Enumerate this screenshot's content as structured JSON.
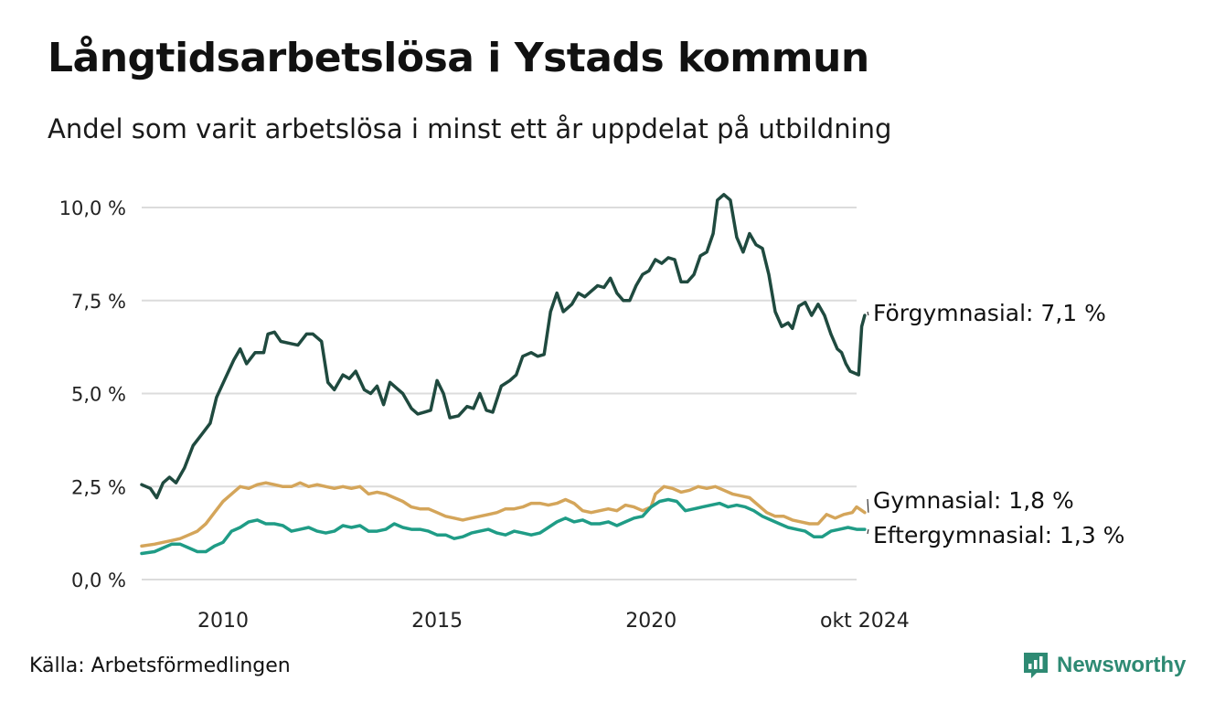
{
  "title": "Långtidsarbetslösa i Ystads kommun",
  "subtitle": "Andel som varit arbetslösa i minst ett år uppdelat på utbildning",
  "source": "Källa: Arbetsförmedlingen",
  "brand": "Newsworthy",
  "colors": {
    "forgymnasial": "#1f4a3f",
    "gymnasial": "#d4a55a",
    "eftergymnasial": "#1f9c86",
    "grid": "#dcdcdc",
    "brand": "#2e8a73"
  },
  "chart_data": {
    "type": "line",
    "title": "",
    "xlabel": "",
    "ylabel": "",
    "xlim": [
      2008.1,
      2024.8
    ],
    "ylim": [
      0,
      10
    ],
    "x_ticks": [
      2010,
      2015,
      2020
    ],
    "x_tick_labels": [
      "2010",
      "2015",
      "2020"
    ],
    "x_end_label": "okt 2024",
    "y_ticks": [
      0,
      2.5,
      5,
      7.5,
      10
    ],
    "y_tick_labels": [
      "0,0 %",
      "2,5 %",
      "5,0 %",
      "7,5 %",
      "10,0 %"
    ],
    "grid": true,
    "series": [
      {
        "name": "Förgymnasial",
        "end_label": "Förgymnasial: 7,1 %",
        "color_key": "forgymnasial",
        "points": [
          [
            2008.1,
            2.55
          ],
          [
            2008.3,
            2.45
          ],
          [
            2008.45,
            2.2
          ],
          [
            2008.6,
            2.6
          ],
          [
            2008.75,
            2.75
          ],
          [
            2008.9,
            2.6
          ],
          [
            2009.1,
            3.0
          ],
          [
            2009.3,
            3.6
          ],
          [
            2009.5,
            3.9
          ],
          [
            2009.7,
            4.2
          ],
          [
            2009.85,
            4.9
          ],
          [
            2010.05,
            5.4
          ],
          [
            2010.25,
            5.9
          ],
          [
            2010.4,
            6.2
          ],
          [
            2010.55,
            5.8
          ],
          [
            2010.75,
            6.1
          ],
          [
            2010.95,
            6.1
          ],
          [
            2011.05,
            6.6
          ],
          [
            2011.2,
            6.65
          ],
          [
            2011.35,
            6.4
          ],
          [
            2011.55,
            6.35
          ],
          [
            2011.75,
            6.3
          ],
          [
            2011.95,
            6.6
          ],
          [
            2012.1,
            6.6
          ],
          [
            2012.3,
            6.4
          ],
          [
            2012.45,
            5.3
          ],
          [
            2012.6,
            5.1
          ],
          [
            2012.8,
            5.5
          ],
          [
            2012.95,
            5.4
          ],
          [
            2013.1,
            5.6
          ],
          [
            2013.3,
            5.1
          ],
          [
            2013.45,
            5.0
          ],
          [
            2013.6,
            5.2
          ],
          [
            2013.75,
            4.7
          ],
          [
            2013.9,
            5.3
          ],
          [
            2014.05,
            5.15
          ],
          [
            2014.2,
            5.0
          ],
          [
            2014.4,
            4.6
          ],
          [
            2014.55,
            4.45
          ],
          [
            2014.7,
            4.5
          ],
          [
            2014.85,
            4.55
          ],
          [
            2015.0,
            5.35
          ],
          [
            2015.15,
            5.0
          ],
          [
            2015.3,
            4.35
          ],
          [
            2015.5,
            4.4
          ],
          [
            2015.7,
            4.65
          ],
          [
            2015.85,
            4.6
          ],
          [
            2016.0,
            5.0
          ],
          [
            2016.15,
            4.55
          ],
          [
            2016.3,
            4.5
          ],
          [
            2016.5,
            5.2
          ],
          [
            2016.7,
            5.35
          ],
          [
            2016.85,
            5.5
          ],
          [
            2017.0,
            6.0
          ],
          [
            2017.2,
            6.1
          ],
          [
            2017.35,
            6.0
          ],
          [
            2017.5,
            6.05
          ],
          [
            2017.65,
            7.2
          ],
          [
            2017.8,
            7.7
          ],
          [
            2017.95,
            7.2
          ],
          [
            2018.15,
            7.4
          ],
          [
            2018.3,
            7.7
          ],
          [
            2018.45,
            7.6
          ],
          [
            2018.6,
            7.75
          ],
          [
            2018.75,
            7.9
          ],
          [
            2018.9,
            7.85
          ],
          [
            2019.05,
            8.1
          ],
          [
            2019.2,
            7.7
          ],
          [
            2019.35,
            7.5
          ],
          [
            2019.5,
            7.5
          ],
          [
            2019.65,
            7.9
          ],
          [
            2019.8,
            8.2
          ],
          [
            2019.95,
            8.3
          ],
          [
            2020.1,
            8.6
          ],
          [
            2020.25,
            8.5
          ],
          [
            2020.4,
            8.65
          ],
          [
            2020.55,
            8.6
          ],
          [
            2020.7,
            8.0
          ],
          [
            2020.85,
            8.0
          ],
          [
            2021.0,
            8.2
          ],
          [
            2021.15,
            8.7
          ],
          [
            2021.3,
            8.8
          ],
          [
            2021.45,
            9.3
          ],
          [
            2021.55,
            10.2
          ],
          [
            2021.7,
            10.35
          ],
          [
            2021.85,
            10.2
          ],
          [
            2022.0,
            9.2
          ],
          [
            2022.15,
            8.8
          ],
          [
            2022.3,
            9.3
          ],
          [
            2022.45,
            9.0
          ],
          [
            2022.6,
            8.9
          ],
          [
            2022.75,
            8.2
          ],
          [
            2022.9,
            7.2
          ],
          [
            2023.05,
            6.8
          ],
          [
            2023.2,
            6.9
          ],
          [
            2023.3,
            6.75
          ],
          [
            2023.45,
            7.35
          ],
          [
            2023.6,
            7.45
          ],
          [
            2023.75,
            7.1
          ],
          [
            2023.9,
            7.4
          ],
          [
            2024.05,
            7.1
          ],
          [
            2024.2,
            6.6
          ],
          [
            2024.35,
            6.2
          ],
          [
            2024.45,
            6.1
          ],
          [
            2024.55,
            5.8
          ],
          [
            2024.65,
            5.6
          ],
          [
            2024.75,
            5.55
          ],
          [
            2024.85,
            5.5
          ],
          [
            2024.92,
            6.8
          ],
          [
            2024.99,
            7.1
          ]
        ]
      },
      {
        "name": "Gymnasial",
        "end_label": "Gymnasial: 1,8 %",
        "color_key": "gymnasial",
        "points": [
          [
            2008.1,
            0.9
          ],
          [
            2008.4,
            0.95
          ],
          [
            2008.6,
            1.0
          ],
          [
            2008.8,
            1.05
          ],
          [
            2009.0,
            1.1
          ],
          [
            2009.2,
            1.2
          ],
          [
            2009.4,
            1.3
          ],
          [
            2009.6,
            1.5
          ],
          [
            2009.8,
            1.8
          ],
          [
            2010.0,
            2.1
          ],
          [
            2010.2,
            2.3
          ],
          [
            2010.4,
            2.5
          ],
          [
            2010.6,
            2.45
          ],
          [
            2010.8,
            2.55
          ],
          [
            2011.0,
            2.6
          ],
          [
            2011.2,
            2.55
          ],
          [
            2011.4,
            2.5
          ],
          [
            2011.6,
            2.5
          ],
          [
            2011.8,
            2.6
          ],
          [
            2012.0,
            2.5
          ],
          [
            2012.2,
            2.55
          ],
          [
            2012.4,
            2.5
          ],
          [
            2012.6,
            2.45
          ],
          [
            2012.8,
            2.5
          ],
          [
            2013.0,
            2.45
          ],
          [
            2013.2,
            2.5
          ],
          [
            2013.4,
            2.3
          ],
          [
            2013.6,
            2.35
          ],
          [
            2013.8,
            2.3
          ],
          [
            2014.0,
            2.2
          ],
          [
            2014.2,
            2.1
          ],
          [
            2014.4,
            1.95
          ],
          [
            2014.6,
            1.9
          ],
          [
            2014.8,
            1.9
          ],
          [
            2015.0,
            1.8
          ],
          [
            2015.2,
            1.7
          ],
          [
            2015.4,
            1.65
          ],
          [
            2015.6,
            1.6
          ],
          [
            2015.8,
            1.65
          ],
          [
            2016.0,
            1.7
          ],
          [
            2016.2,
            1.75
          ],
          [
            2016.4,
            1.8
          ],
          [
            2016.6,
            1.9
          ],
          [
            2016.8,
            1.9
          ],
          [
            2017.0,
            1.95
          ],
          [
            2017.2,
            2.05
          ],
          [
            2017.4,
            2.05
          ],
          [
            2017.6,
            2.0
          ],
          [
            2017.8,
            2.05
          ],
          [
            2018.0,
            2.15
          ],
          [
            2018.2,
            2.05
          ],
          [
            2018.4,
            1.85
          ],
          [
            2018.6,
            1.8
          ],
          [
            2018.8,
            1.85
          ],
          [
            2019.0,
            1.9
          ],
          [
            2019.2,
            1.85
          ],
          [
            2019.4,
            2.0
          ],
          [
            2019.6,
            1.95
          ],
          [
            2019.8,
            1.85
          ],
          [
            2020.0,
            1.95
          ],
          [
            2020.1,
            2.3
          ],
          [
            2020.3,
            2.5
          ],
          [
            2020.5,
            2.45
          ],
          [
            2020.7,
            2.35
          ],
          [
            2020.9,
            2.4
          ],
          [
            2021.1,
            2.5
          ],
          [
            2021.3,
            2.45
          ],
          [
            2021.5,
            2.5
          ],
          [
            2021.7,
            2.4
          ],
          [
            2021.9,
            2.3
          ],
          [
            2022.1,
            2.25
          ],
          [
            2022.3,
            2.2
          ],
          [
            2022.5,
            2.0
          ],
          [
            2022.7,
            1.8
          ],
          [
            2022.9,
            1.7
          ],
          [
            2023.1,
            1.7
          ],
          [
            2023.3,
            1.6
          ],
          [
            2023.5,
            1.55
          ],
          [
            2023.7,
            1.5
          ],
          [
            2023.9,
            1.5
          ],
          [
            2024.1,
            1.75
          ],
          [
            2024.3,
            1.65
          ],
          [
            2024.5,
            1.75
          ],
          [
            2024.7,
            1.8
          ],
          [
            2024.8,
            1.95
          ],
          [
            2024.99,
            1.8
          ]
        ]
      },
      {
        "name": "Eftergymnasial",
        "end_label": "Eftergymnasial: 1,3 %",
        "color_key": "eftergymnasial",
        "points": [
          [
            2008.1,
            0.7
          ],
          [
            2008.4,
            0.75
          ],
          [
            2008.6,
            0.85
          ],
          [
            2008.8,
            0.95
          ],
          [
            2009.0,
            0.95
          ],
          [
            2009.2,
            0.85
          ],
          [
            2009.4,
            0.75
          ],
          [
            2009.6,
            0.75
          ],
          [
            2009.8,
            0.9
          ],
          [
            2010.0,
            1.0
          ],
          [
            2010.2,
            1.3
          ],
          [
            2010.4,
            1.4
          ],
          [
            2010.6,
            1.55
          ],
          [
            2010.8,
            1.6
          ],
          [
            2011.0,
            1.5
          ],
          [
            2011.2,
            1.5
          ],
          [
            2011.4,
            1.45
          ],
          [
            2011.6,
            1.3
          ],
          [
            2011.8,
            1.35
          ],
          [
            2012.0,
            1.4
          ],
          [
            2012.2,
            1.3
          ],
          [
            2012.4,
            1.25
          ],
          [
            2012.6,
            1.3
          ],
          [
            2012.8,
            1.45
          ],
          [
            2013.0,
            1.4
          ],
          [
            2013.2,
            1.45
          ],
          [
            2013.4,
            1.3
          ],
          [
            2013.6,
            1.3
          ],
          [
            2013.8,
            1.35
          ],
          [
            2014.0,
            1.5
          ],
          [
            2014.2,
            1.4
          ],
          [
            2014.4,
            1.35
          ],
          [
            2014.6,
            1.35
          ],
          [
            2014.8,
            1.3
          ],
          [
            2015.0,
            1.2
          ],
          [
            2015.2,
            1.2
          ],
          [
            2015.4,
            1.1
          ],
          [
            2015.6,
            1.15
          ],
          [
            2015.8,
            1.25
          ],
          [
            2016.0,
            1.3
          ],
          [
            2016.2,
            1.35
          ],
          [
            2016.4,
            1.25
          ],
          [
            2016.6,
            1.2
          ],
          [
            2016.8,
            1.3
          ],
          [
            2017.0,
            1.25
          ],
          [
            2017.2,
            1.2
          ],
          [
            2017.4,
            1.25
          ],
          [
            2017.6,
            1.4
          ],
          [
            2017.8,
            1.55
          ],
          [
            2018.0,
            1.65
          ],
          [
            2018.2,
            1.55
          ],
          [
            2018.4,
            1.6
          ],
          [
            2018.6,
            1.5
          ],
          [
            2018.8,
            1.5
          ],
          [
            2019.0,
            1.55
          ],
          [
            2019.2,
            1.45
          ],
          [
            2019.4,
            1.55
          ],
          [
            2019.6,
            1.65
          ],
          [
            2019.8,
            1.7
          ],
          [
            2020.0,
            1.95
          ],
          [
            2020.2,
            2.1
          ],
          [
            2020.4,
            2.15
          ],
          [
            2020.6,
            2.1
          ],
          [
            2020.8,
            1.85
          ],
          [
            2021.0,
            1.9
          ],
          [
            2021.2,
            1.95
          ],
          [
            2021.4,
            2.0
          ],
          [
            2021.6,
            2.05
          ],
          [
            2021.8,
            1.95
          ],
          [
            2022.0,
            2.0
          ],
          [
            2022.2,
            1.95
          ],
          [
            2022.4,
            1.85
          ],
          [
            2022.6,
            1.7
          ],
          [
            2022.8,
            1.6
          ],
          [
            2023.0,
            1.5
          ],
          [
            2023.2,
            1.4
          ],
          [
            2023.4,
            1.35
          ],
          [
            2023.6,
            1.3
          ],
          [
            2023.8,
            1.15
          ],
          [
            2024.0,
            1.15
          ],
          [
            2024.2,
            1.3
          ],
          [
            2024.4,
            1.35
          ],
          [
            2024.6,
            1.4
          ],
          [
            2024.8,
            1.35
          ],
          [
            2024.99,
            1.35
          ]
        ]
      }
    ]
  }
}
